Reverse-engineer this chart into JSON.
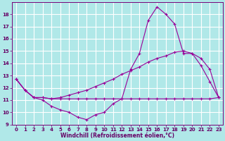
{
  "title": "",
  "xlabel": "Windchill (Refroidissement éolien,°C)",
  "ylabel": "",
  "background_color": "#b0e8e8",
  "grid_color": "#ffffff",
  "line_color": "#990099",
  "xlim": [
    -0.5,
    23.5
  ],
  "ylim": [
    9,
    19
  ],
  "yticks": [
    9,
    10,
    11,
    12,
    13,
    14,
    15,
    16,
    17,
    18
  ],
  "xticks": [
    0,
    1,
    2,
    3,
    4,
    5,
    6,
    7,
    8,
    9,
    10,
    11,
    12,
    13,
    14,
    15,
    16,
    17,
    18,
    19,
    20,
    21,
    22,
    23
  ],
  "line1_x": [
    0,
    1,
    2,
    3,
    4,
    5,
    6,
    7,
    8,
    9,
    10,
    11,
    12,
    13,
    14,
    15,
    16,
    17,
    18,
    19,
    20,
    21,
    22,
    23
  ],
  "line1_y": [
    12.7,
    11.8,
    11.2,
    11.0,
    10.5,
    10.2,
    10.0,
    9.6,
    9.4,
    9.8,
    10.0,
    10.7,
    11.1,
    13.5,
    14.8,
    17.5,
    18.6,
    18.0,
    17.2,
    14.8,
    14.8,
    13.8,
    12.5,
    11.2
  ],
  "line2_x": [
    0,
    1,
    2,
    3,
    4,
    5,
    6,
    7,
    8,
    9,
    10,
    11,
    12,
    13,
    14,
    15,
    16,
    17,
    18,
    19,
    20,
    21,
    22,
    23
  ],
  "line2_y": [
    12.7,
    11.8,
    11.2,
    11.2,
    11.1,
    11.1,
    11.1,
    11.1,
    11.1,
    11.1,
    11.1,
    11.1,
    11.1,
    11.1,
    11.1,
    11.1,
    11.1,
    11.1,
    11.1,
    11.1,
    11.1,
    11.1,
    11.1,
    11.2
  ],
  "line3_x": [
    0,
    1,
    2,
    3,
    4,
    5,
    6,
    7,
    8,
    9,
    10,
    11,
    12,
    13,
    14,
    15,
    16,
    17,
    18,
    19,
    20,
    21,
    22,
    23
  ],
  "line3_y": [
    12.7,
    11.8,
    11.2,
    11.2,
    11.1,
    11.2,
    11.4,
    11.6,
    11.8,
    12.1,
    12.4,
    12.7,
    13.1,
    13.4,
    13.7,
    14.1,
    14.4,
    14.6,
    14.9,
    15.0,
    14.8,
    14.4,
    13.5,
    11.2
  ]
}
